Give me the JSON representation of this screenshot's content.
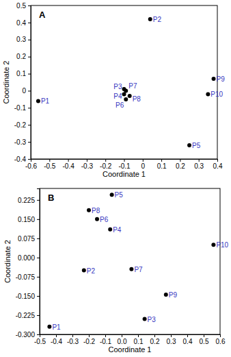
{
  "chart_data": [
    {
      "type": "scatter",
      "annotation": "A",
      "x_label": "Coordinate 1",
      "y_label": "Coordinate 2",
      "point_labels": [
        "P1",
        "P2",
        "P3",
        "P4",
        "P5",
        "P6",
        "P7",
        "P8",
        "P9",
        "P10"
      ],
      "x": [
        -0.56,
        0.04,
        -0.1,
        -0.1,
        0.25,
        -0.09,
        -0.09,
        -0.07,
        0.38,
        0.35
      ],
      "values": [
        -0.06,
        0.42,
        0.01,
        -0.02,
        -0.32,
        -0.05,
        0.0,
        -0.03,
        0.07,
        -0.02
      ],
      "color": "#000000",
      "xlim": [
        -0.6,
        0.4
      ],
      "xticks": [
        -0.6,
        -0.5,
        -0.4,
        -0.3,
        -0.2,
        -0.1,
        0,
        0.1,
        0.2,
        0.3,
        0.4
      ],
      "ylim": [
        -0.4,
        0.5
      ],
      "yticks": [
        -0.4,
        -0.3,
        -0.2,
        -0.1,
        0,
        0.1,
        0.2,
        0.3,
        0.4,
        0.5
      ]
    },
    {
      "type": "scatter",
      "annotation": "B",
      "x_label": "Coordinate 1",
      "y_label": "Coordinate 2",
      "point_labels": [
        "P1",
        "P2",
        "P3",
        "P4",
        "P5",
        "P6",
        "P7",
        "P8",
        "P9",
        "P10"
      ],
      "x": [
        -0.44,
        -0.23,
        0.14,
        -0.07,
        -0.06,
        -0.15,
        0.06,
        -0.2,
        0.27,
        0.56
      ],
      "values": [
        -0.27,
        -0.05,
        -0.24,
        0.11,
        0.245,
        0.15,
        -0.045,
        0.185,
        -0.145,
        0.05
      ],
      "color": "#000000",
      "xlim": [
        -0.5,
        0.6
      ],
      "xticks": [
        -0.5,
        -0.4,
        -0.3,
        -0.2,
        -0.1,
        {
          "value": 0,
          "label": "0.0"
        },
        0.1,
        0.2,
        0.3,
        0.4,
        0.5,
        0.6
      ],
      "ylim": [
        -0.3,
        0.27
      ],
      "yticks": [
        {
          "value": -0.3,
          "label": "-0.300"
        },
        {
          "value": -0.225,
          "label": "-0.225"
        },
        {
          "value": -0.15,
          "label": "-0.150"
        },
        {
          "value": -0.075,
          "label": "-0.075"
        },
        {
          "value": 0,
          "label": "0.000"
        },
        {
          "value": 0.075,
          "label": "0.075"
        },
        {
          "value": 0.15,
          "label": "0.150"
        },
        {
          "value": 0.225,
          "label": "0.225"
        }
      ]
    }
  ]
}
